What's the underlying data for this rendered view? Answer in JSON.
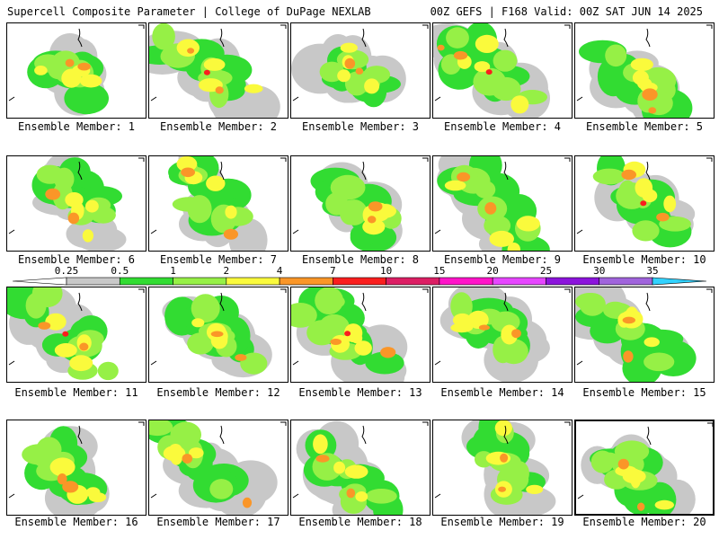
{
  "header": {
    "left": "Supercell Composite Parameter | College of DuPage NEXLAB",
    "right": "00Z GEFS | F168 Valid: 00Z SAT JUN 14 2025"
  },
  "colorbar": {
    "ticks": [
      "0.25",
      "0.5",
      "1",
      "2",
      "4",
      "7",
      "10",
      "15",
      "20",
      "25",
      "30",
      "35"
    ],
    "colors": [
      "#c8c8c8",
      "#32dc32",
      "#96f046",
      "#fafa3c",
      "#fa9628",
      "#fa1e1e",
      "#dc1e64",
      "#ff14c8",
      "#e646ff",
      "#8c14dc",
      "#a064dc",
      "#32d2ff"
    ],
    "under_color": "#ffffff",
    "over_color": "#32d2ff"
  },
  "members": [
    {
      "label": "Ensemble Member: 1"
    },
    {
      "label": "Ensemble Member: 2"
    },
    {
      "label": "Ensemble Member: 3"
    },
    {
      "label": "Ensemble Member: 4"
    },
    {
      "label": "Ensemble Member: 5"
    },
    {
      "label": "Ensemble Member: 6"
    },
    {
      "label": "Ensemble Member: 7"
    },
    {
      "label": "Ensemble Member: 8"
    },
    {
      "label": "Ensemble Member: 9"
    },
    {
      "label": "Ensemble Member: 10"
    },
    {
      "label": "Ensemble Member: 11"
    },
    {
      "label": "Ensemble Member: 12"
    },
    {
      "label": "Ensemble Member: 13"
    },
    {
      "label": "Ensemble Member: 14"
    },
    {
      "label": "Ensemble Member: 15"
    },
    {
      "label": "Ensemble Member: 16"
    },
    {
      "label": "Ensemble Member: 17"
    },
    {
      "label": "Ensemble Member: 18"
    },
    {
      "label": "Ensemble Member: 19"
    },
    {
      "label": "Ensemble Member: 20"
    }
  ]
}
